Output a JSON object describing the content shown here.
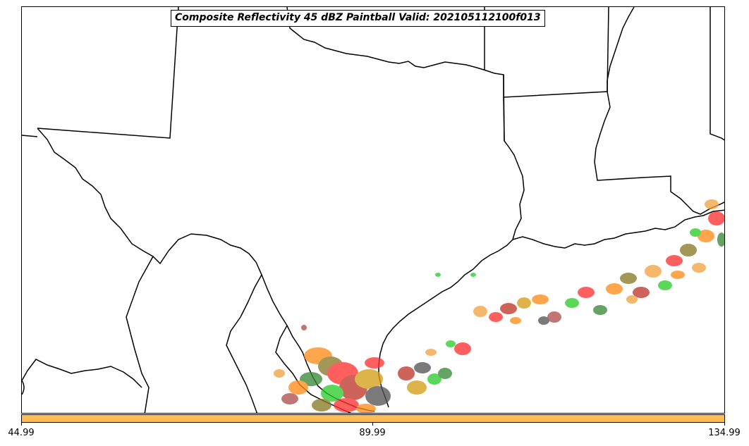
{
  "title": "Composite Reflectivity 45 dBZ Paintball Valid: 202105112100f013",
  "colorbar": {
    "color": "#ffbb55",
    "tick_labels": [
      "44.99",
      "89.99",
      "134.99"
    ]
  },
  "map": {
    "region": "Texas and Gulf Coast",
    "colors": {
      "boundary": "#000000",
      "paintball_palette": [
        "#ff3333",
        "#ff8c1a",
        "#f2a344",
        "#2ecc2e",
        "#3a8a3a",
        "#8a7a2a",
        "#c0392b",
        "#555555",
        "#d4a017",
        "#b05050"
      ]
    }
  }
}
